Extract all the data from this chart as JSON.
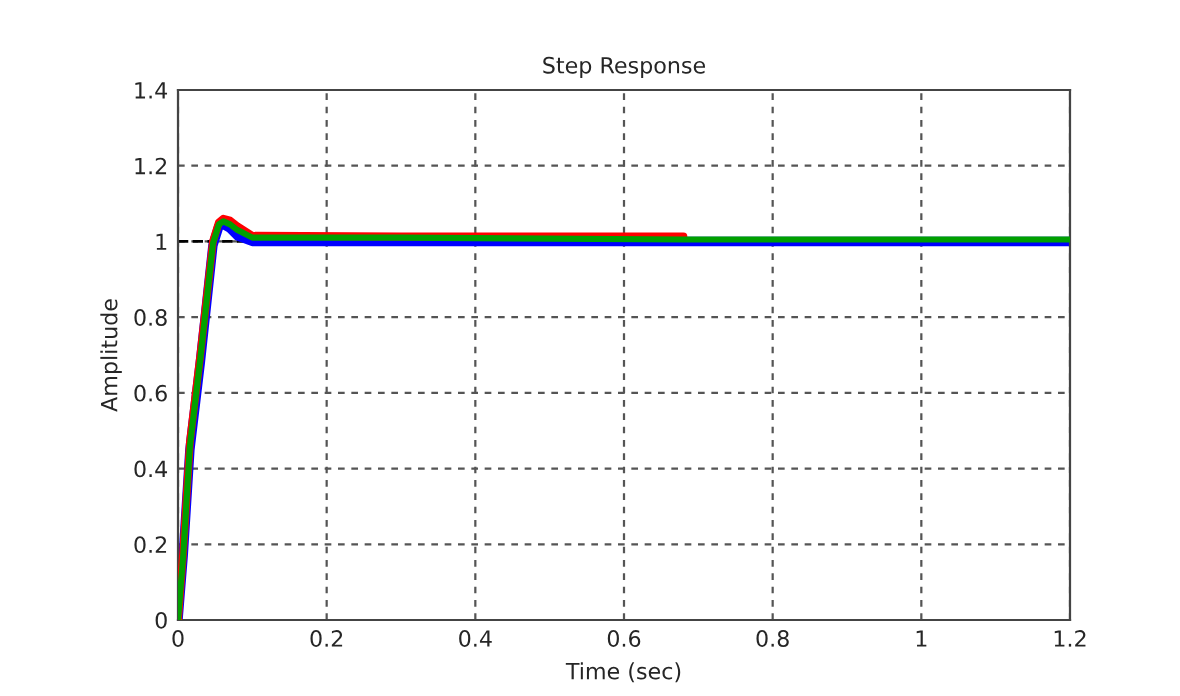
{
  "chart_data": {
    "type": "line",
    "title": "Step Response",
    "xlabel": "Time (sec)",
    "ylabel": "Amplitude",
    "x": [
      0,
      0.007,
      0.016,
      0.03,
      0.047,
      0.055,
      0.061,
      0.07,
      0.08,
      0.1,
      0.3,
      0.68,
      0.69,
      1.2
    ],
    "series": [
      {
        "color": "#0000ff",
        "values": [
          0,
          0.17,
          0.45,
          0.68,
          0.99,
          1.04,
          1.045,
          1.035,
          1.015,
          1.0,
          1.0,
          1.0,
          1.0,
          1.0
        ]
      },
      {
        "color": "#ff0000",
        "values": [
          0,
          0.18,
          0.47,
          0.7,
          1.0,
          1.05,
          1.06,
          1.055,
          1.04,
          1.015,
          1.013,
          1.013,
          null,
          null
        ]
      },
      {
        "color": "#00a000",
        "values": [
          0,
          0.17,
          0.46,
          0.69,
          0.995,
          1.045,
          1.053,
          1.045,
          1.03,
          1.01,
          1.01,
          1.005,
          1.005,
          1.005
        ]
      }
    ],
    "xlim": [
      0,
      1.2
    ],
    "xticks": [
      0,
      0.2,
      0.4,
      0.6,
      0.8,
      {
        "value": 1,
        "label": "1"
      },
      1.2
    ],
    "ylim": [
      0,
      1.4
    ],
    "yticks": [
      0,
      0.2,
      0.4,
      0.6,
      0.8,
      {
        "value": 1,
        "label": "1"
      },
      1.2,
      1.4
    ],
    "ref_lines": [
      {
        "axis": "y",
        "value": 1,
        "color": "#000000",
        "line_style": "dashed"
      }
    ],
    "grid": true,
    "line_style": "solid",
    "marker": "none",
    "legend": false
  }
}
